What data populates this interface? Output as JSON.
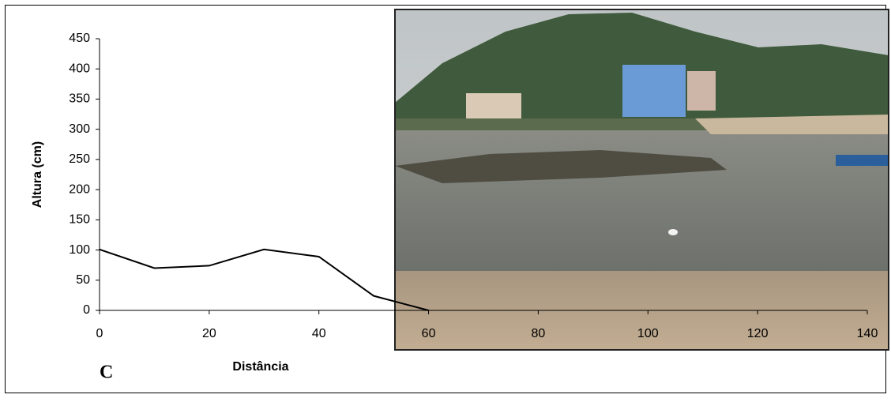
{
  "chart_data": {
    "type": "line",
    "x": [
      0,
      10,
      20,
      30,
      40,
      50,
      60
    ],
    "values": [
      101,
      70,
      74,
      101,
      89,
      24,
      0
    ],
    "color": "#000000",
    "xlim": [
      0,
      140
    ],
    "xticks": [
      0,
      20,
      40,
      60,
      80,
      100,
      120,
      140
    ],
    "ylim": [
      0,
      450
    ],
    "yticks": [
      0,
      50,
      100,
      150,
      200,
      250,
      300,
      350,
      400,
      450
    ],
    "xlabel": "Distância",
    "ylabel": "Altura (cm)",
    "panel_label": "C"
  }
}
